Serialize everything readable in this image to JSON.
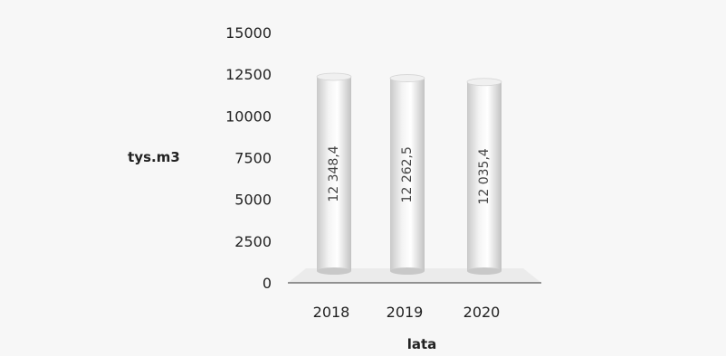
{
  "chart_data": {
    "type": "bar",
    "style": "3d-cylinder",
    "categories": [
      "2018",
      "2019",
      "2020"
    ],
    "values": [
      12348.4,
      12262.5,
      12035.4
    ],
    "data_labels": [
      "12 348,4",
      "12 262,5",
      "12 035,4"
    ],
    "yticks": [
      "15000",
      "12500",
      "10000",
      "7500",
      "5000",
      "2500",
      "0"
    ],
    "ylim": [
      0,
      15000
    ],
    "ylabel": "tys.m3",
    "xlabel": "lata",
    "title": "",
    "grid": false,
    "legend": "none",
    "colors": {
      "bar": "#e6e6e6",
      "bar_highlight": "#ffffff",
      "bar_shadow": "#bdbdbd",
      "floor": "#ebebeb",
      "axis": "#333333"
    }
  }
}
